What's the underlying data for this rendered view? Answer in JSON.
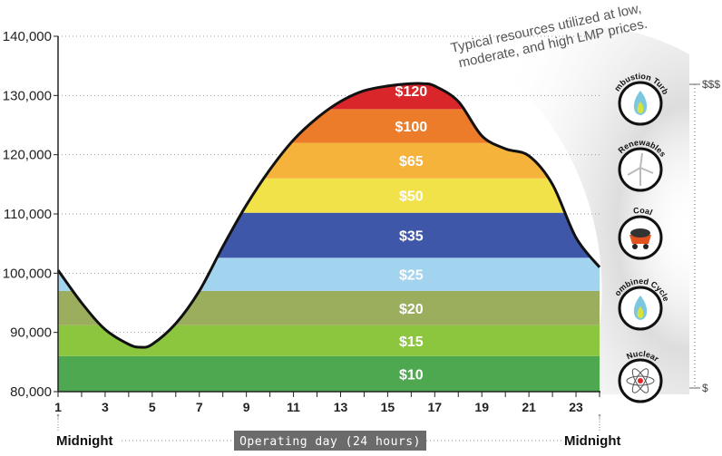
{
  "chart_data": {
    "type": "area",
    "y_ticks": [
      {
        "value": 80000,
        "label": "80,000"
      },
      {
        "value": 90000,
        "label": "90,000"
      },
      {
        "value": 100000,
        "label": "100,000"
      },
      {
        "value": 110000,
        "label": "110,000"
      },
      {
        "value": 120000,
        "label": "120,000"
      },
      {
        "value": 130000,
        "label": "130,000"
      },
      {
        "value": 140000,
        "label": "140,000"
      }
    ],
    "x_ticks": [
      "1",
      "3",
      "5",
      "7",
      "9",
      "11",
      "13",
      "15",
      "17",
      "19",
      "21",
      "23"
    ],
    "xlim": [
      1,
      24
    ],
    "ylim": [
      80000,
      140000
    ],
    "load_curve": {
      "x": [
        1,
        2,
        3,
        4,
        4.5,
        5,
        6,
        7,
        8,
        9,
        10,
        11,
        12,
        13,
        14,
        15,
        16,
        16.5,
        17,
        18,
        19,
        20,
        21,
        22,
        23,
        24
      ],
      "y": [
        100500,
        95000,
        90500,
        88000,
        87500,
        88000,
        91500,
        97000,
        104500,
        111500,
        117500,
        122500,
        126200,
        129000,
        130800,
        131600,
        132000,
        132000,
        131600,
        129000,
        123200,
        121000,
        119800,
        115000,
        106000,
        101000
      ]
    },
    "price_bands": [
      {
        "label": "$10",
        "y_low": 80000,
        "y_high": 86000,
        "color": "#4da84f"
      },
      {
        "label": "$15",
        "y_low": 86000,
        "y_high": 91200,
        "color": "#8cc63e"
      },
      {
        "label": "$20",
        "y_low": 91200,
        "y_high": 97000,
        "color": "#9aae5d"
      },
      {
        "label": "$25",
        "y_low": 97000,
        "y_high": 102600,
        "color": "#a2d3ef"
      },
      {
        "label": "$35",
        "y_low": 102600,
        "y_high": 110200,
        "color": "#3f57a8"
      },
      {
        "label": "$50",
        "y_low": 110200,
        "y_high": 116000,
        "color": "#f2e24a",
        "label_color": "#c8c8b0"
      },
      {
        "label": "$65",
        "y_low": 116000,
        "y_high": 122000,
        "color": "#f6b33c"
      },
      {
        "label": "$100",
        "y_low": 122000,
        "y_high": 127700,
        "color": "#ec7c2a"
      },
      {
        "label": "$120",
        "y_low": 127700,
        "y_high": 134000,
        "color": "#d9262a"
      }
    ],
    "band_color_default_label": "#ffffff",
    "grid": "dotted horizontal",
    "x_start_label": "Midnight",
    "x_end_label": "Midnight",
    "operating_day_label": "Operating day (24 hours)",
    "resources_caption": [
      "Typical resources utilized at low,",
      "moderate, and high LMP prices."
    ],
    "resources": [
      {
        "name": "Combustion Turbine",
        "lines": [
          "Combustion",
          "Turbine"
        ],
        "icon": "flame-icon"
      },
      {
        "name": "Renewables",
        "lines": [
          "Renewables"
        ],
        "icon": "wind-turbine-icon"
      },
      {
        "name": "Coal",
        "lines": [
          "Coal"
        ],
        "icon": "coal-cart-icon"
      },
      {
        "name": "Combined Cycles",
        "lines": [
          "Combined",
          "Cycles"
        ],
        "icon": "flame-icon"
      },
      {
        "name": "Nuclear",
        "lines": [
          "Nuclear"
        ],
        "icon": "atom-icon"
      }
    ],
    "price_scale": {
      "top": "$$$",
      "bottom": "$"
    }
  }
}
